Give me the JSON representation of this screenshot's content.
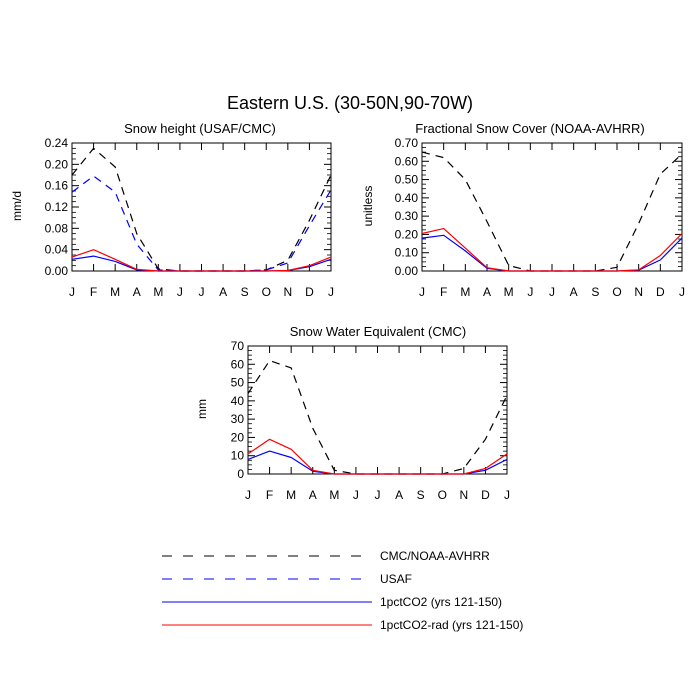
{
  "figure": {
    "title": "Eastern U.S. (30-50N,90-70W)"
  },
  "legend": {
    "placement": "bottom-center",
    "entries": [
      {
        "label": "CMC/NOAA-AVHRR",
        "color": "#000000",
        "dash": "dashed"
      },
      {
        "label": "USAF",
        "color": "#0000ff",
        "dash": "dashed"
      },
      {
        "label": "1pctCO2 (yrs 121-150)",
        "color": "#0000ff",
        "dash": "solid"
      },
      {
        "label": "1pctCO2-rad (yrs 121-150)",
        "color": "#ff0000",
        "dash": "solid"
      }
    ]
  },
  "chart_data": [
    {
      "type": "line",
      "title": "Snow height (USAF/CMC)",
      "xlabel": "",
      "ylabel": "mm/d",
      "categories": [
        "J",
        "F",
        "M",
        "A",
        "M",
        "J",
        "J",
        "A",
        "S",
        "O",
        "N",
        "D",
        "J"
      ],
      "ylim": [
        0,
        0.24
      ],
      "yticks": [
        "0.00",
        "0.04",
        "0.08",
        "0.12",
        "0.16",
        "0.20",
        "0.24"
      ],
      "grid": false,
      "series": [
        {
          "name": "CMC/NOAA-AVHRR",
          "color": "#000000",
          "dash": "dashed",
          "values": [
            0.18,
            0.23,
            0.195,
            0.07,
            0.004,
            0.0,
            0.0,
            0.0,
            0.0,
            0.002,
            0.02,
            0.095,
            0.18
          ]
        },
        {
          "name": "USAF",
          "color": "#0000ff",
          "dash": "dashed",
          "values": [
            0.148,
            0.178,
            0.148,
            0.05,
            0.002,
            0.0,
            0.0,
            0.0,
            0.0,
            0.002,
            0.015,
            0.085,
            0.152
          ]
        },
        {
          "name": "1pctCO2 (yrs 121-150)",
          "color": "#0000ff",
          "dash": "solid",
          "values": [
            0.022,
            0.028,
            0.018,
            0.002,
            0.0,
            0.0,
            0.0,
            0.0,
            0.0,
            0.0,
            0.001,
            0.008,
            0.022
          ]
        },
        {
          "name": "1pctCO2-rad (yrs 121-150)",
          "color": "#ff0000",
          "dash": "solid",
          "values": [
            0.026,
            0.04,
            0.022,
            0.003,
            0.0,
            0.0,
            0.0,
            0.0,
            0.0,
            0.0,
            0.001,
            0.01,
            0.026
          ]
        }
      ]
    },
    {
      "type": "line",
      "title": "Fractional Snow Cover (NOAA-AVHRR)",
      "xlabel": "",
      "ylabel": "unitless",
      "categories": [
        "J",
        "F",
        "M",
        "A",
        "M",
        "J",
        "J",
        "A",
        "S",
        "O",
        "N",
        "D",
        "J"
      ],
      "ylim": [
        0,
        0.7
      ],
      "yticks": [
        "0.00",
        "0.10",
        "0.20",
        "0.30",
        "0.40",
        "0.50",
        "0.60",
        "0.70"
      ],
      "grid": false,
      "series": [
        {
          "name": "CMC/NOAA-AVHRR",
          "color": "#000000",
          "dash": "dashed",
          "values": [
            0.65,
            0.62,
            0.5,
            0.27,
            0.03,
            0.0,
            0.0,
            0.0,
            0.0,
            0.02,
            0.26,
            0.53,
            0.64
          ]
        },
        {
          "name": "1pctCO2 (yrs 121-150)",
          "color": "#0000ff",
          "dash": "solid",
          "values": [
            0.18,
            0.195,
            0.11,
            0.015,
            0.0,
            0.0,
            0.0,
            0.0,
            0.0,
            0.0,
            0.005,
            0.06,
            0.18
          ]
        },
        {
          "name": "1pctCO2-rad (yrs 121-150)",
          "color": "#ff0000",
          "dash": "solid",
          "values": [
            0.205,
            0.232,
            0.125,
            0.018,
            0.0,
            0.0,
            0.0,
            0.0,
            0.0,
            0.0,
            0.006,
            0.085,
            0.205
          ]
        }
      ]
    },
    {
      "type": "line",
      "title": "Snow Water Equivalent (CMC)",
      "xlabel": "",
      "ylabel": "mm",
      "categories": [
        "J",
        "F",
        "M",
        "A",
        "M",
        "J",
        "J",
        "A",
        "S",
        "O",
        "N",
        "D",
        "J"
      ],
      "ylim": [
        0,
        70
      ],
      "yticks": [
        "0",
        "10",
        "20",
        "30",
        "40",
        "50",
        "60",
        "70"
      ],
      "grid": false,
      "series": [
        {
          "name": "CMC/NOAA-AVHRR",
          "color": "#000000",
          "dash": "dashed",
          "values": [
            44,
            62,
            58,
            25,
            2,
            0,
            0,
            0,
            0,
            0,
            3,
            19,
            43
          ]
        },
        {
          "name": "1pctCO2 (yrs 121-150)",
          "color": "#0000ff",
          "dash": "solid",
          "values": [
            8,
            12.5,
            9,
            1.5,
            0,
            0,
            0,
            0,
            0,
            0,
            0,
            2,
            8
          ]
        },
        {
          "name": "1pctCO2-rad (yrs 121-150)",
          "color": "#ff0000",
          "dash": "solid",
          "values": [
            11,
            19,
            13.5,
            2,
            0,
            0,
            0,
            0,
            0,
            0,
            0,
            3,
            11
          ]
        }
      ]
    }
  ]
}
